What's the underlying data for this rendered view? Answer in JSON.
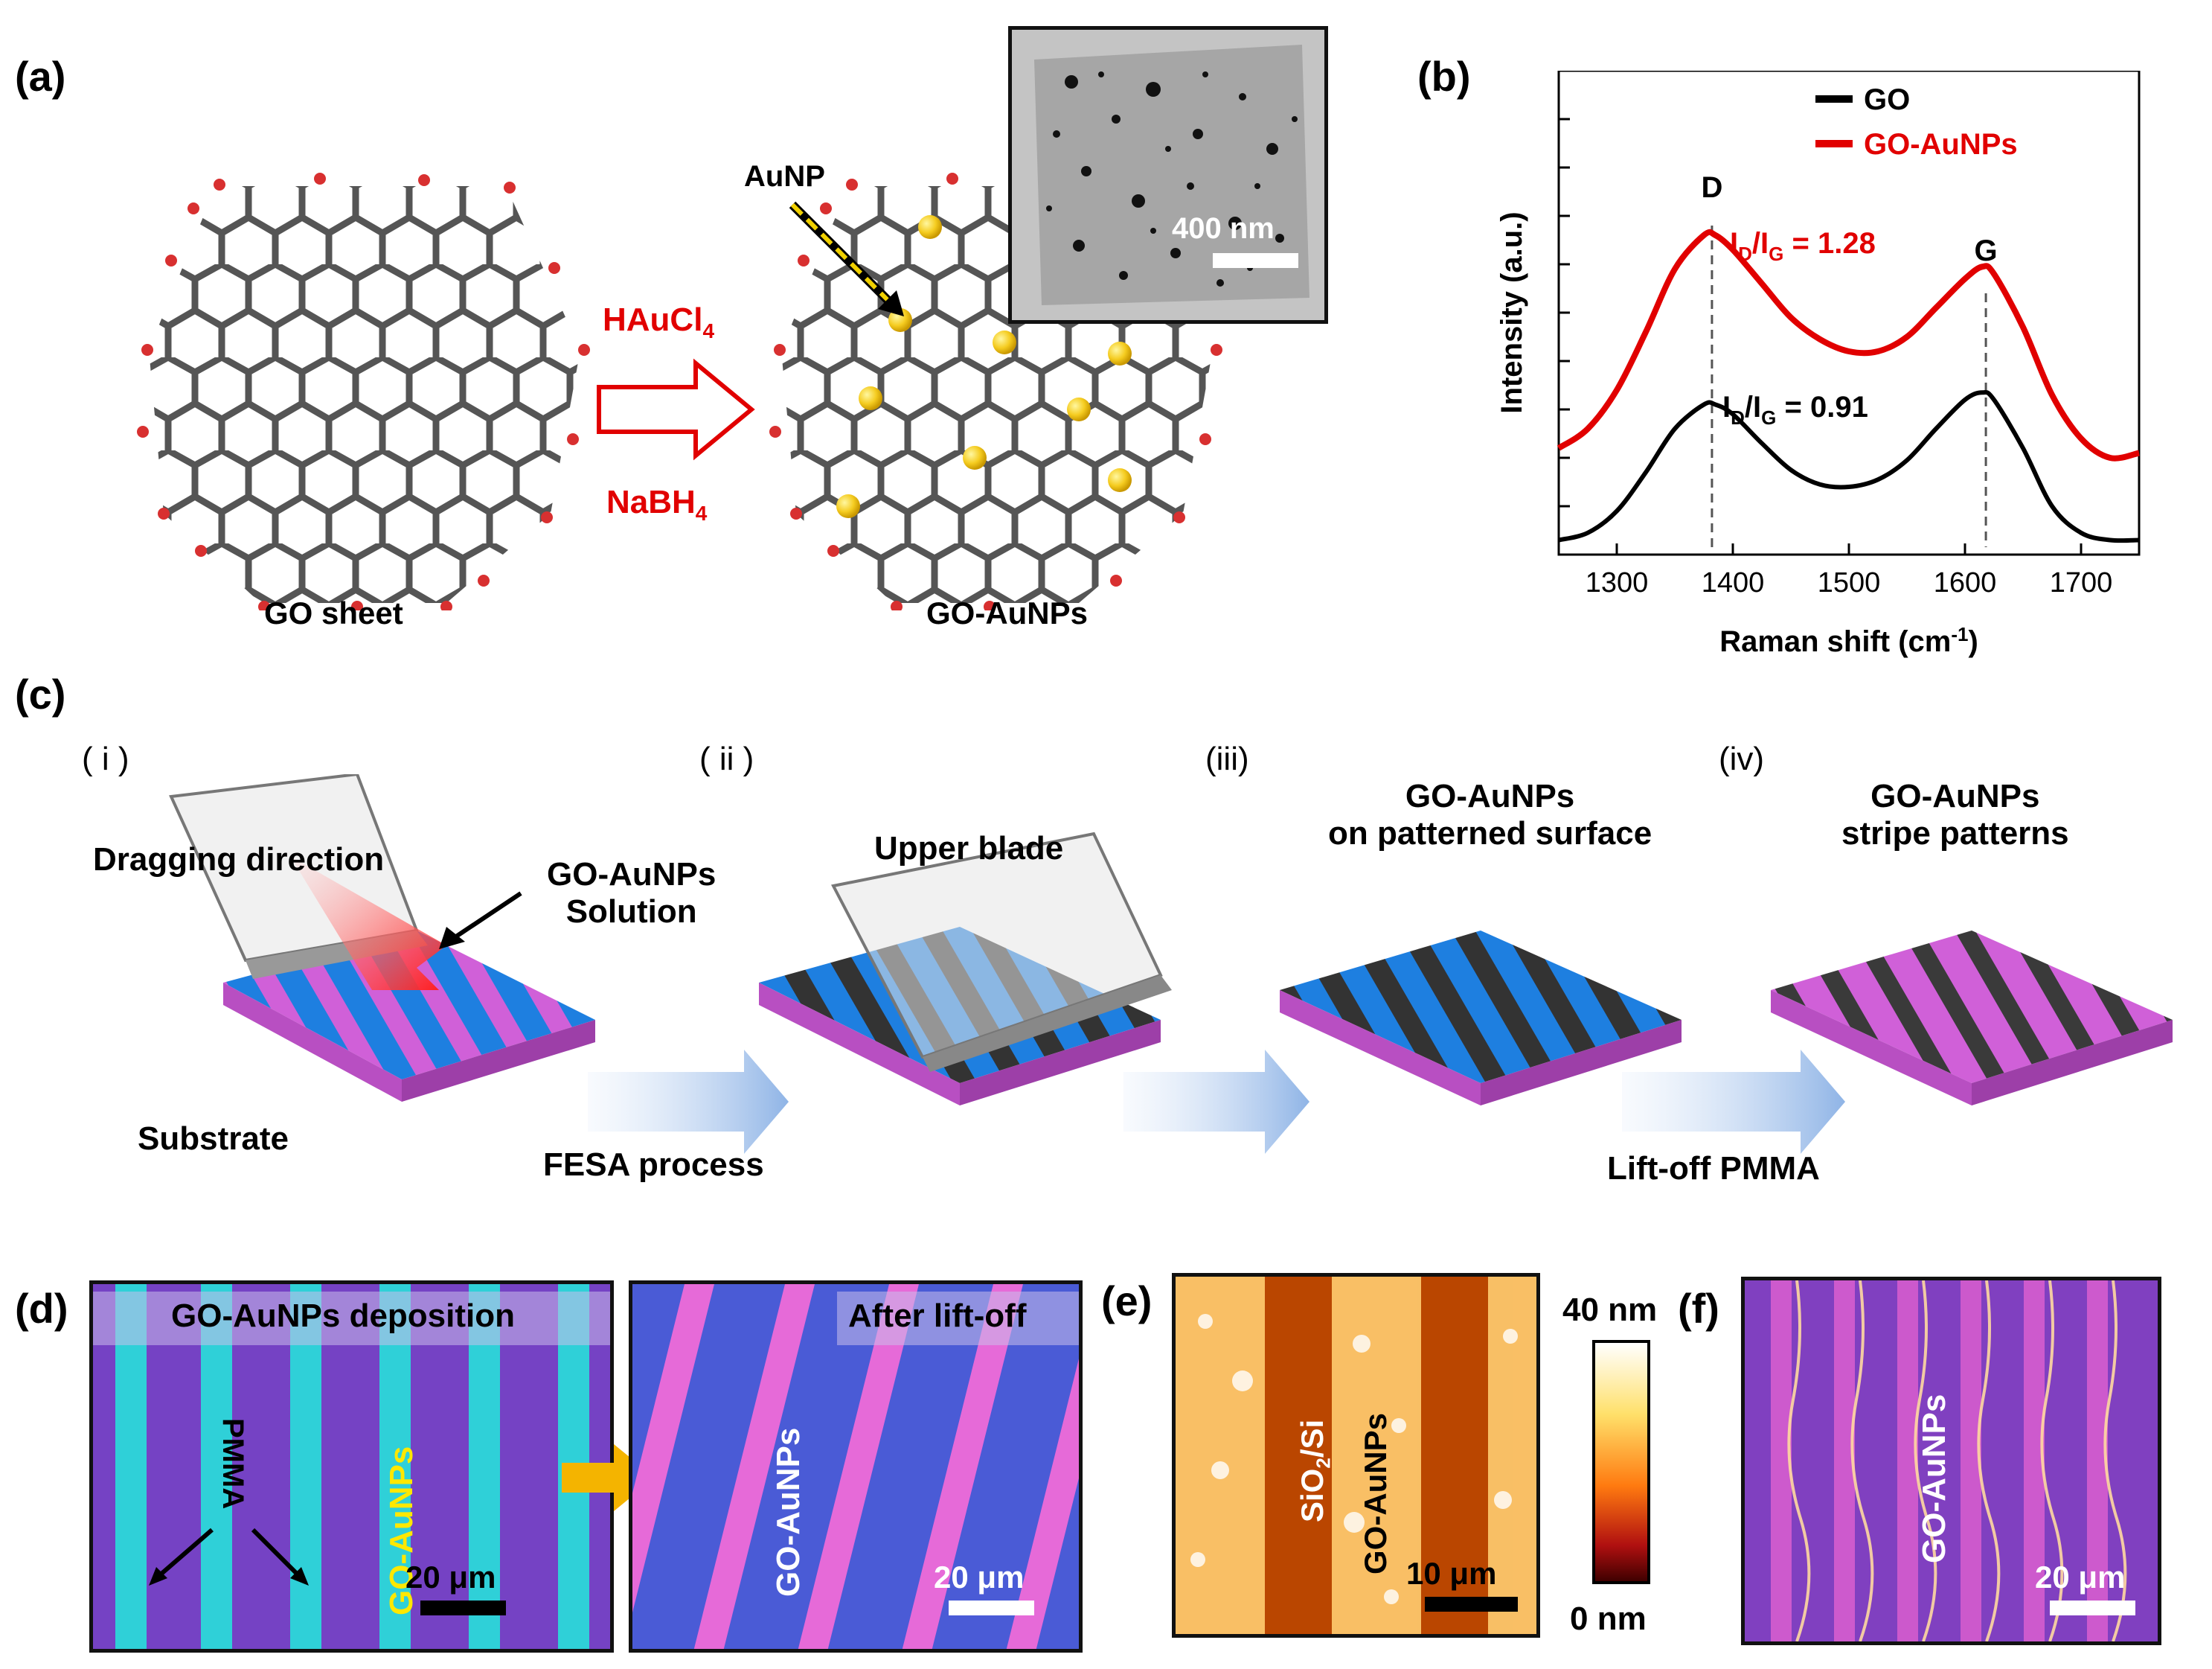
{
  "panels": {
    "a": "(a)",
    "b": "(b)",
    "c": "(c)",
    "d": "(d)",
    "e": "(e)",
    "f": "(f)"
  },
  "panel_a": {
    "reagent_top": "HAuCl",
    "reagent_top_sub": "4",
    "reagent_bottom": "NaBH",
    "reagent_bottom_sub": "4",
    "left_caption": "GO sheet",
    "right_caption": "GO-AuNPs",
    "aunp_label": "AuNP",
    "tem_scale": "400 nm"
  },
  "panel_c": {
    "steps": [
      "( i )",
      "( ii )",
      "(iii)",
      "(iv)"
    ],
    "dragging": "Dragging  direction",
    "solution_1": "GO-AuNPs",
    "solution_2": "Solution",
    "substrate": "Substrate",
    "upper_blade": "Upper blade",
    "patterned_1": "GO-AuNPs",
    "patterned_2": "on patterned surface",
    "stripes_1": "GO-AuNPs",
    "stripes_2": "stripe patterns",
    "fesa": "FESA  process",
    "liftoff": "Lift-off PMMA"
  },
  "panel_d": {
    "title_left": "GO-AuNPs deposition",
    "pmma": "PMMA",
    "goaunps_left": "GO-AuNPs",
    "scale_left": "20 μm",
    "title_right": "After lift-off",
    "goaunps_right": "GO-AuNPs",
    "scale_right": "20 μm"
  },
  "panel_e": {
    "sio2": "SiO",
    "sio2_sub": "2",
    "sio2_rest": "/Si",
    "goaunps": "GO-AuNPs",
    "scale": "10 μm",
    "cbar_max": "40 nm",
    "cbar_min": "0 nm"
  },
  "panel_f": {
    "goaunps": "GO-AuNPs",
    "scale": "20 μm"
  },
  "colors": {
    "accent_red": "#e10000",
    "pmma_cyan": "#28d2d6",
    "film_purple": "#7b3fc8",
    "substrate_magenta": "#d060d8",
    "stripe_blue": "#1e7fe0",
    "stripe_dark": "#3a3a3a",
    "afm_orange": "#d45a00"
  },
  "chart_data": {
    "type": "line",
    "title": "",
    "xlabel": "Raman shift (cm-1)",
    "xlabel_main": "Raman shift (cm",
    "xlabel_sup": "-1",
    "xlabel_end": ")",
    "ylabel": "Intensity (a.u.)",
    "xlim": [
      1250,
      1750
    ],
    "ylim": [
      0,
      10
    ],
    "xticks": [
      1300,
      1400,
      1500,
      1600,
      1700
    ],
    "legend": [
      "GO",
      "GO-AuNPs"
    ],
    "legend_position": "top-right",
    "peak_D_label": "D",
    "peak_G_label": "G",
    "peak_D_x": 1382,
    "peak_G_x": 1618,
    "ratio_red": {
      "text": "I",
      "sub1": "D",
      "mid": "/I",
      "sub2": "G",
      "val": " = 1.28"
    },
    "ratio_black": {
      "text": "I",
      "sub1": "D",
      "mid": "/I",
      "sub2": "G",
      "val": " = 0.91"
    },
    "series": [
      {
        "name": "GO",
        "color": "#000000",
        "x": [
          1250,
          1275,
          1300,
          1325,
          1350,
          1375,
          1385,
          1400,
          1425,
          1450,
          1475,
          1500,
          1525,
          1550,
          1575,
          1600,
          1615,
          1625,
          1650,
          1675,
          1700,
          1725,
          1750
        ],
        "values": [
          0.3,
          0.45,
          0.9,
          1.7,
          2.6,
          3.1,
          3.1,
          2.9,
          2.3,
          1.75,
          1.45,
          1.4,
          1.55,
          1.95,
          2.6,
          3.2,
          3.35,
          3.2,
          2.2,
          1.0,
          0.45,
          0.3,
          0.3
        ]
      },
      {
        "name": "GO-AuNPs",
        "color": "#e10000",
        "x": [
          1250,
          1275,
          1300,
          1325,
          1350,
          1375,
          1385,
          1400,
          1425,
          1450,
          1475,
          1500,
          1525,
          1550,
          1575,
          1600,
          1615,
          1625,
          1650,
          1675,
          1700,
          1725,
          1750
        ],
        "values": [
          2.2,
          2.6,
          3.4,
          4.6,
          5.9,
          6.6,
          6.6,
          6.3,
          5.6,
          4.9,
          4.45,
          4.2,
          4.2,
          4.5,
          5.1,
          5.7,
          5.95,
          5.8,
          4.7,
          3.3,
          2.4,
          2.0,
          2.1
        ]
      }
    ]
  }
}
